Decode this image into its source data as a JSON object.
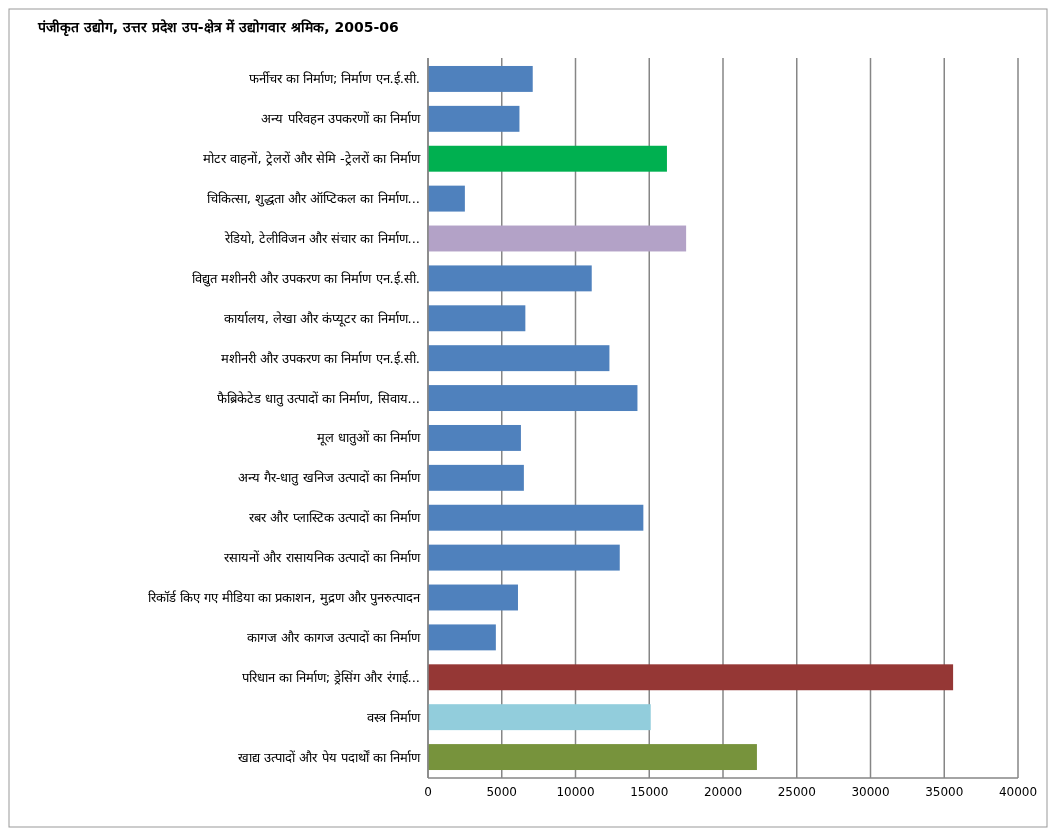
{
  "chart_data": {
    "type": "bar",
    "orientation": "horizontal",
    "title": "पंजीकृत उद्योग, उत्तर प्रदेश उप-क्षेत्र में उद्योगवार श्रमिक, 2005-06",
    "categories": [
      "फर्नीचर का निर्माण; निर्माण एन.ई.सी.",
      "अन्य परिवहन उपकरणों का निर्माण",
      "मोटर वाहनों, ट्रेलरों और सेमि -ट्रेलरों का निर्माण",
      "चिकित्सा, शुद्धता और ऑप्टिकल का निर्माण...",
      "रेडियो, टेलीविजन और संचार का निर्माण...",
      "विद्युत मशीनरी और उपकरण का निर्माण एन.ई.सी.",
      "कार्यालय, लेखा और कंप्यूटर का निर्माण...",
      "मशीनरी और उपकरण का निर्माण एन.ई.सी.",
      "फैब्रिकेटेड धातु उत्पादों का निर्माण, सिवाय...",
      "मूल धातुओं का निर्माण",
      "अन्य गैर-धातु खनिज उत्पादों का निर्माण",
      "रबर और प्लास्टिक उत्पादों का निर्माण",
      "रसायनों और रासायनिक उत्पादों का निर्माण",
      "रिकॉर्ड किए गए मीडिया का प्रकाशन, मुद्रण और पुनरुत्पादन",
      "कागज और कागज उत्पादों का निर्माण",
      "परिधान का निर्माण; ड्रेसिंग और रंगाई...",
      "वस्त्र निर्माण",
      "खाद्य उत्पादों और पेय पदार्थों का निर्माण"
    ],
    "values": [
      7100,
      6200,
      16200,
      2500,
      17500,
      11100,
      6600,
      12300,
      14200,
      6300,
      6500,
      14600,
      13000,
      6100,
      4600,
      35600,
      15100,
      22300
    ],
    "colors": [
      "#4f81bd",
      "#4f81bd",
      "#00b050",
      "#4f81bd",
      "#b3a2c7",
      "#4f81bd",
      "#4f81bd",
      "#4f81bd",
      "#4f81bd",
      "#4f81bd",
      "#4f81bd",
      "#4f81bd",
      "#4f81bd",
      "#4f81bd",
      "#4f81bd",
      "#953735",
      "#92cddc",
      "#77933c"
    ],
    "xlim": [
      0,
      40000
    ],
    "xticks": [
      0,
      5000,
      10000,
      15000,
      20000,
      25000,
      30000,
      35000,
      40000
    ],
    "grid": "x"
  }
}
